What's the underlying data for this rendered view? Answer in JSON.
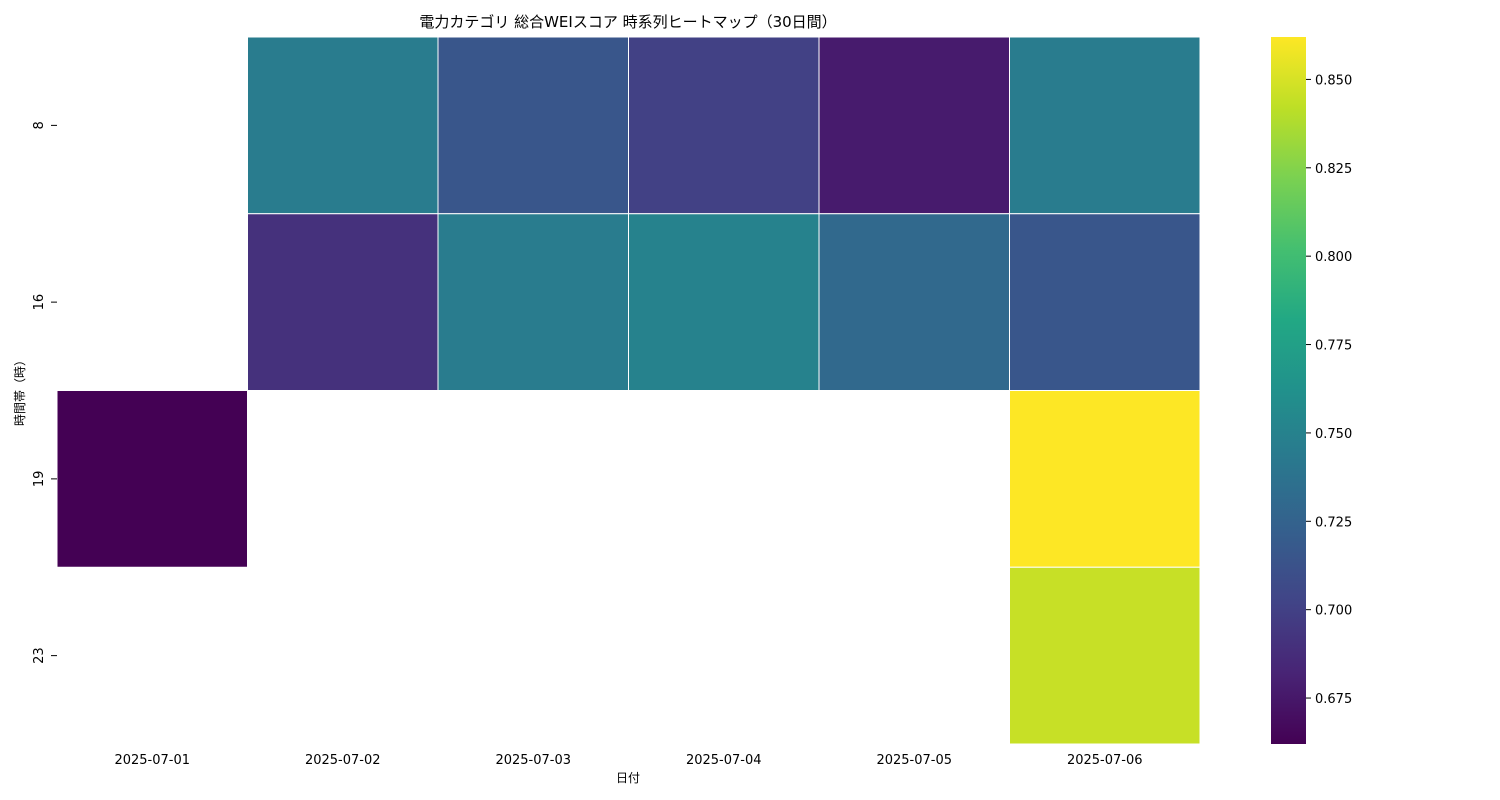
{
  "chart_data": {
    "type": "heatmap",
    "title": "電力カテゴリ 総合WEIスコア 時系列ヒートマップ（30日間）",
    "xlabel": "日付",
    "ylabel": "時間帯（時）",
    "x": [
      "2025-07-01",
      "2025-07-02",
      "2025-07-03",
      "2025-07-04",
      "2025-07-05",
      "2025-07-06"
    ],
    "y": [
      "8",
      "16",
      "19",
      "23"
    ],
    "values": [
      [
        null,
        0.745,
        0.715,
        0.7,
        0.677,
        0.745
      ],
      [
        null,
        0.69,
        0.745,
        0.75,
        0.73,
        0.715
      ],
      [
        0.662,
        null,
        null,
        null,
        null,
        0.862
      ],
      [
        null,
        null,
        null,
        null,
        null,
        0.845
      ]
    ],
    "colormap": "viridis",
    "vmin": 0.662,
    "vmax": 0.862,
    "colorbar_ticks": [
      "0.675",
      "0.700",
      "0.725",
      "0.750",
      "0.775",
      "0.800",
      "0.825",
      "0.850"
    ],
    "missing_color": "#ffffff",
    "cell_border_color": "#ffffff"
  }
}
